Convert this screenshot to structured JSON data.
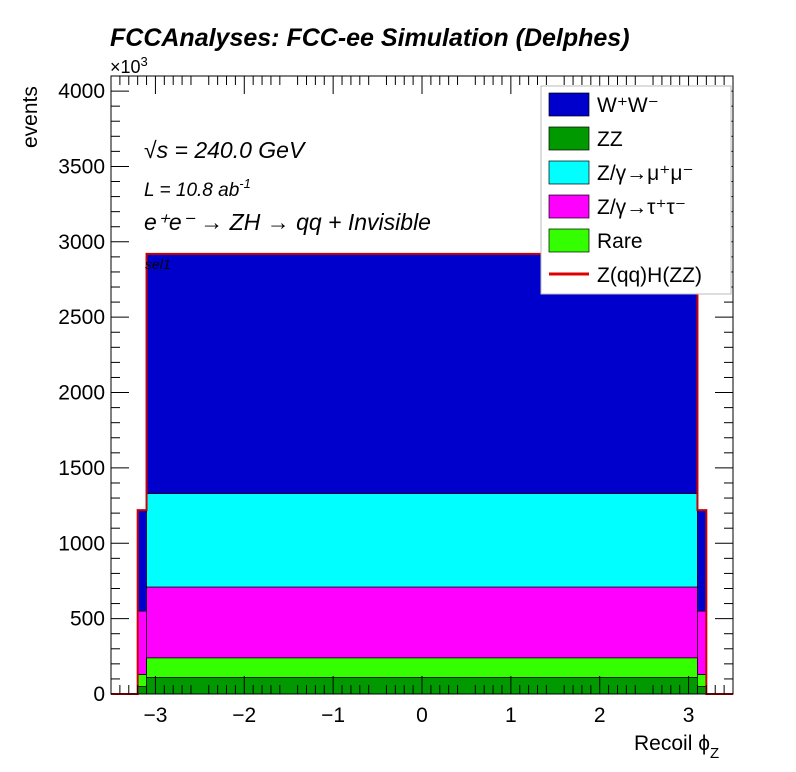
{
  "chart_data": {
    "type": "stacked-histogram",
    "title": "FCCAnalyses: FCC-ee Simulation (Delphes)",
    "xlabel": "Recoil ϕ",
    "xlabel_sub": "Z",
    "ylabel": "events",
    "y_multiplier": "×10",
    "y_multiplier_exp": "3",
    "xlim": [
      -3.5,
      3.5
    ],
    "ylim": [
      0,
      4100
    ],
    "x_ticks": [
      -3,
      -2,
      -1,
      0,
      1,
      2,
      3
    ],
    "x_tick_labels": [
      "−3",
      "−2",
      "−1",
      "0",
      "1",
      "2",
      "3"
    ],
    "y_ticks": [
      0,
      500,
      1000,
      1500,
      2000,
      2500,
      3000,
      3500,
      4000
    ],
    "y_tick_labels": [
      "0",
      "500",
      "1000",
      "1500",
      "2000",
      "2500",
      "3000",
      "3500",
      "4000"
    ],
    "bins": [
      {
        "x0": -3.5,
        "x1": -3.2,
        "values": [
          0,
          0,
          0,
          0,
          0
        ],
        "signal": 0
      },
      {
        "x0": -3.2,
        "x1": -3.1,
        "values": [
          50,
          80,
          420,
          0,
          670
        ],
        "signal": 1220
      },
      {
        "x0": -3.1,
        "x1": 3.1,
        "values": [
          110,
          130,
          470,
          620,
          1590
        ],
        "signal": 2920
      },
      {
        "x0": 3.1,
        "x1": 3.2,
        "values": [
          50,
          80,
          420,
          0,
          670
        ],
        "signal": 1220
      },
      {
        "x0": 3.2,
        "x1": 3.5,
        "values": [
          0,
          0,
          0,
          0,
          0
        ],
        "signal": 0
      }
    ],
    "series": [
      {
        "name": "ZZ",
        "color": "#009900"
      },
      {
        "name": "Rare",
        "color": "#33ff00"
      },
      {
        "name": "Z/γ→τ⁺τ⁻",
        "color": "#ff00ff"
      },
      {
        "name": "Z/γ→μ⁺μ⁻",
        "color": "#00ffff"
      },
      {
        "name": "W⁺W⁻",
        "color": "#0000cc"
      }
    ],
    "signal": {
      "name": "Z(qq)H(ZZ)",
      "color": "#cc0000"
    },
    "legend": {
      "placement": "top-right",
      "entries": [
        {
          "label": "W⁺W⁻",
          "color": "#0000cc",
          "style": "box"
        },
        {
          "label": "ZZ",
          "color": "#009900",
          "style": "box"
        },
        {
          "label": "Z/γ→μ⁺μ⁻",
          "color": "#00ffff",
          "style": "box"
        },
        {
          "label": "Z/γ→τ⁺τ⁻",
          "color": "#ff00ff",
          "style": "box"
        },
        {
          "label": "Rare",
          "color": "#33ff00",
          "style": "box"
        },
        {
          "label": "Z(qq)H(ZZ)",
          "color": "#dd0000",
          "style": "line"
        }
      ]
    },
    "annotations": {
      "sqrts_symbol": "√s",
      "sqrts_value": " = 240.0 GeV",
      "lumi": "L = 10.8 ab",
      "lumi_exp": "-1",
      "process": "e⁺e⁻ → ZH → qq + Invisible",
      "selection": "sel1"
    }
  }
}
